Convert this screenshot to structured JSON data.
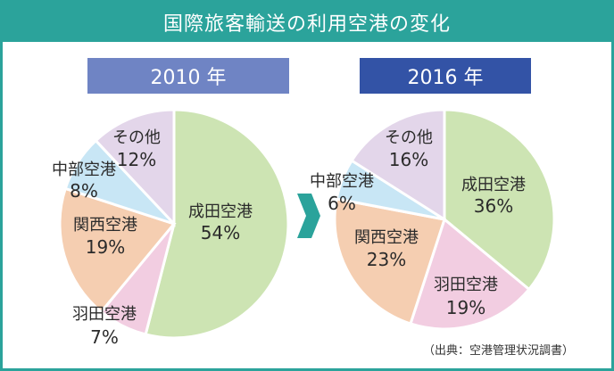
{
  "title": "国際旅客輸送の利用空港の変化",
  "source": "（出典：空港管理状況調書）",
  "chart_data": [
    {
      "type": "pie",
      "title": "2010 年",
      "slices": [
        {
          "name": "成田空港",
          "value": 54,
          "label": "54%",
          "color": "#cde4b3"
        },
        {
          "name": "羽田空港",
          "value": 7,
          "label": "7%",
          "color": "#f2cde1"
        },
        {
          "name": "関西空港",
          "value": 19,
          "label": "19%",
          "color": "#f5ceb1"
        },
        {
          "name": "中部空港",
          "value": 8,
          "label": "8%",
          "color": "#c8e6f5"
        },
        {
          "name": "その他",
          "value": 12,
          "label": "12%",
          "color": "#e3d6ea"
        }
      ]
    },
    {
      "type": "pie",
      "title": "2016 年",
      "slices": [
        {
          "name": "成田空港",
          "value": 36,
          "label": "36%",
          "color": "#cde4b3"
        },
        {
          "name": "羽田空港",
          "value": 19,
          "label": "19%",
          "color": "#f2cde1"
        },
        {
          "name": "関西空港",
          "value": 23,
          "label": "23%",
          "color": "#f5ceb1"
        },
        {
          "name": "中部空港",
          "value": 6,
          "label": "6%",
          "color": "#c8e6f5"
        },
        {
          "name": "その他",
          "value": 16,
          "label": "16%",
          "color": "#e3d6ea"
        }
      ]
    }
  ],
  "colors": {
    "frame": "#2ba39b",
    "year_2010": "#6f84c4",
    "year_2016": "#3353a6",
    "arrow": "#2ba39b"
  }
}
